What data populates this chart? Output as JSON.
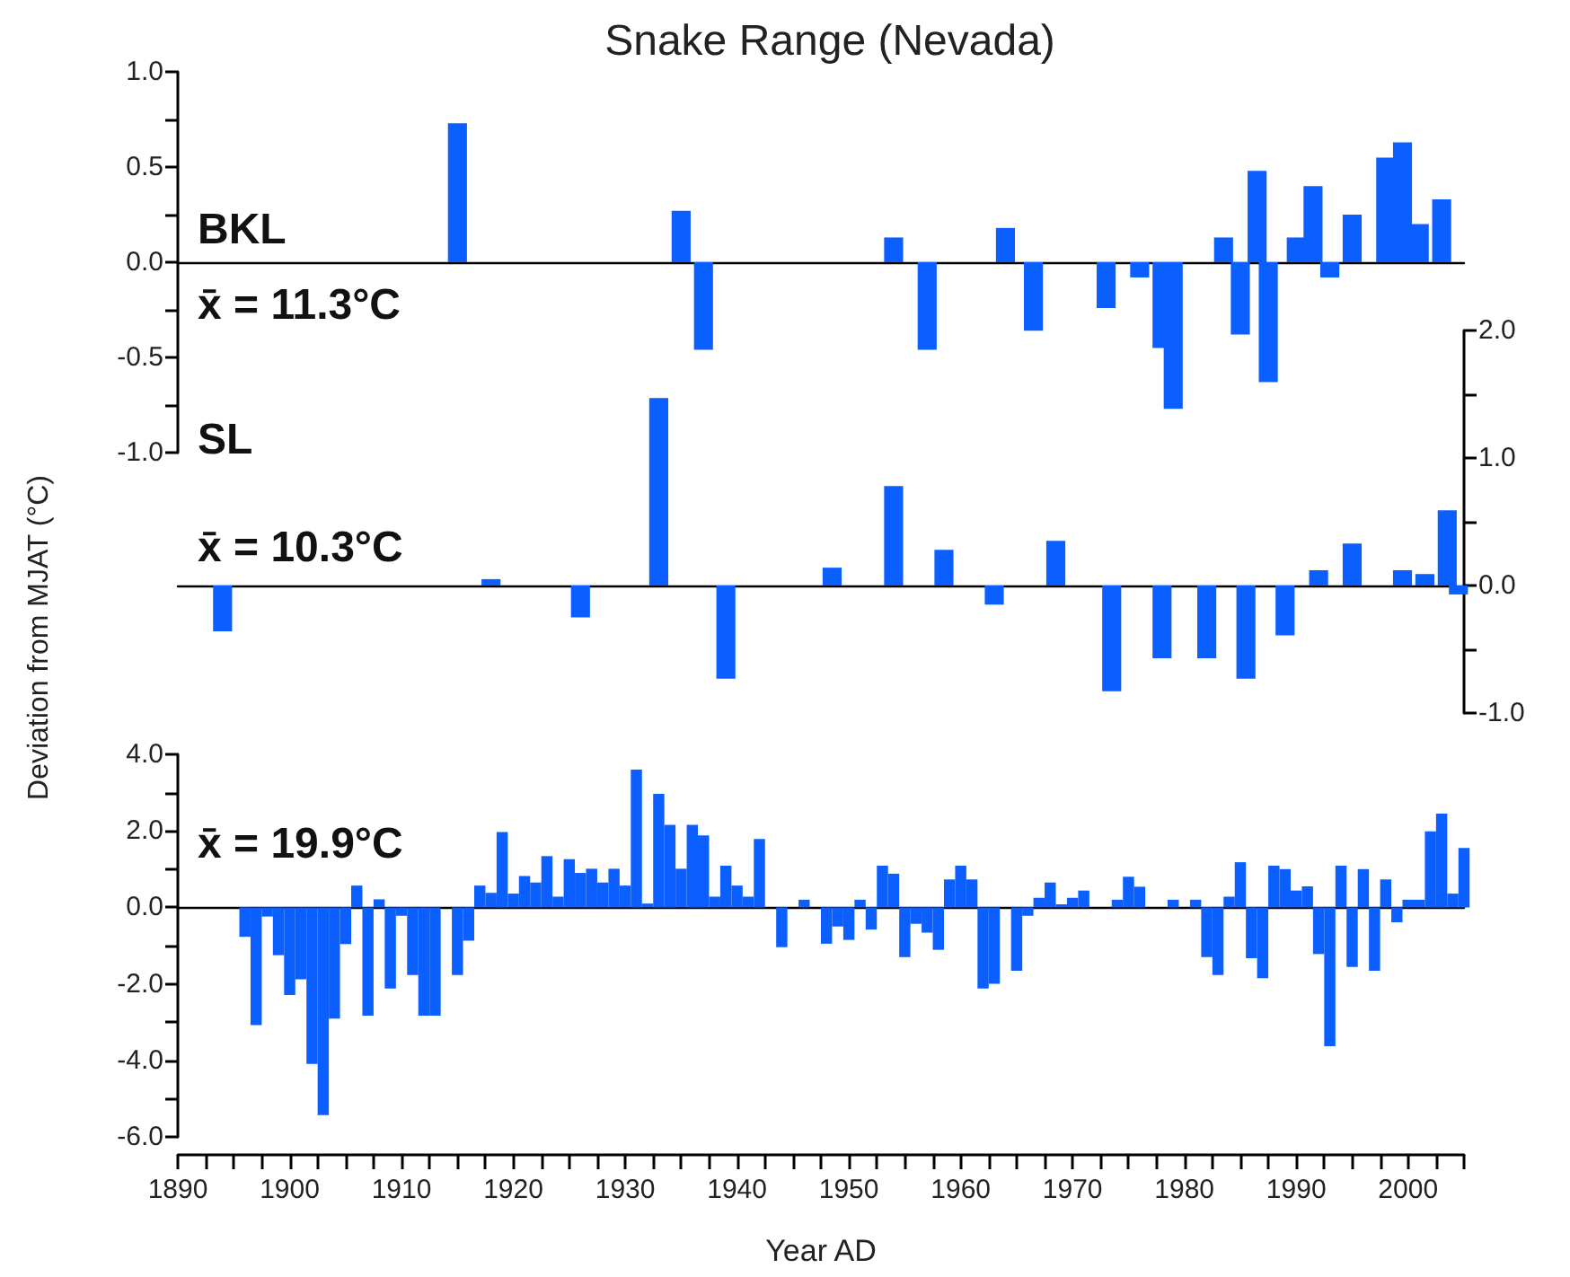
{
  "chart_data": [
    {
      "type": "bar",
      "title": "Snake Range (Nevada)",
      "annotations": [
        "BKL",
        "x̄ = 11.3°C"
      ],
      "color": "#0b5fff",
      "tick_labels": "y",
      "x": [
        1915,
        1935,
        1937,
        1954,
        1957,
        1964,
        1966.5,
        1973,
        1976,
        1978,
        1979,
        1983.5,
        1985,
        1986.5,
        1987.5,
        1990,
        1991.5,
        1993,
        1995,
        1998,
        1999.5,
        2001,
        2003
      ],
      "values": [
        0.73,
        0.27,
        -0.46,
        0.13,
        -0.46,
        0.18,
        -0.36,
        -0.24,
        -0.08,
        -0.45,
        -0.77,
        0.13,
        -0.38,
        0.48,
        -0.63,
        0.13,
        0.4,
        -0.08,
        0.25,
        0.55,
        0.63,
        0.2,
        0.33
      ],
      "xlim": [
        1890,
        2005
      ],
      "ylim": [
        -1,
        1
      ],
      "yticks": [
        {
          "value": -1,
          "label": "-1.0"
        },
        {
          "value": -0.75,
          "label": null
        },
        {
          "value": -0.5,
          "label": "-0.5"
        },
        {
          "value": -0.25,
          "label": null
        },
        {
          "value": 0,
          "label": "0.0"
        },
        {
          "value": 0.25,
          "label": null
        },
        {
          "value": 0.5,
          "label": "0.5"
        },
        {
          "value": 0.75,
          "label": null
        },
        {
          "value": 1,
          "label": "1.0"
        }
      ]
    },
    {
      "type": "bar",
      "annotations": [
        "SL",
        "x̄ = 10.3°C"
      ],
      "color": "#0b5fff",
      "tick_labels": "y",
      "x": [
        1894,
        1918,
        1926,
        1933,
        1939,
        1948.5,
        1954,
        1958.5,
        1963,
        1968.5,
        1973.5,
        1978,
        1982,
        1985.5,
        1989,
        1992,
        1995,
        1999.5,
        2001.5,
        2003.5,
        2004.5
      ],
      "values": [
        -0.36,
        0.05,
        -0.25,
        1.47,
        -0.73,
        0.14,
        0.78,
        0.28,
        -0.15,
        0.35,
        -0.83,
        -0.57,
        -0.57,
        -0.73,
        -0.39,
        0.12,
        0.33,
        0.12,
        0.09,
        0.59,
        -0.07
      ],
      "xlim": [
        1890,
        2005
      ],
      "ylim": [
        -1,
        2
      ],
      "yticks": [
        {
          "value": -1,
          "label": "-1.0"
        },
        {
          "value": -0.5,
          "label": null
        },
        {
          "value": 0,
          "label": "0.0"
        },
        {
          "value": 0.5,
          "label": null
        },
        {
          "value": 1,
          "label": "1.0"
        },
        {
          "value": 1.5,
          "label": null
        },
        {
          "value": 2,
          "label": "2.0"
        }
      ]
    },
    {
      "type": "bar",
      "annotations": [
        "x̄ = 19.9°C"
      ],
      "xlabel": "Year AD",
      "ylabel": "Deviation from MJAT (°C)",
      "color": "#0b5fff",
      "x": [
        1896,
        1897,
        1898,
        1899,
        1900,
        1901,
        1902,
        1903,
        1904,
        1905,
        1906,
        1907,
        1908,
        1909,
        1910,
        1911,
        1912,
        1913,
        1915,
        1916,
        1917,
        1918,
        1919,
        1920,
        1921,
        1922,
        1923,
        1924,
        1925,
        1926,
        1927,
        1928,
        1929,
        1930,
        1931,
        1932,
        1933,
        1934,
        1935,
        1936,
        1937,
        1938,
        1939,
        1940,
        1941,
        1942,
        1944,
        1946,
        1948,
        1949,
        1950,
        1951,
        1952,
        1953,
        1954,
        1955,
        1956,
        1957,
        1958,
        1959,
        1960,
        1961,
        1962,
        1963,
        1965,
        1966,
        1967,
        1968,
        1969,
        1970,
        1971,
        1974,
        1975,
        1976,
        1979,
        1981,
        1982,
        1983,
        1984,
        1985,
        1986,
        1987,
        1988,
        1989,
        1990,
        1991,
        1992,
        1993,
        1994,
        1995,
        1996,
        1997,
        1998,
        1999,
        2000,
        2001,
        2002,
        2003,
        2004,
        2005
      ],
      "values": [
        -0.77,
        -3.08,
        -0.24,
        -1.25,
        -2.29,
        -1.88,
        -4.09,
        -5.43,
        -2.91,
        -0.96,
        0.57,
        -2.83,
        0.21,
        -2.12,
        -0.22,
        -1.77,
        -2.83,
        -2.83,
        -1.77,
        -0.87,
        0.57,
        0.38,
        1.97,
        0.36,
        0.82,
        0.65,
        1.34,
        0.28,
        1.26,
        0.9,
        1.01,
        0.65,
        1.01,
        0.57,
        3.6,
        0.1,
        2.97,
        2.16,
        1.01,
        2.16,
        1.88,
        0.28,
        1.09,
        0.57,
        0.28,
        1.79,
        -1.04,
        0.2,
        -0.95,
        -0.5,
        -0.85,
        0.2,
        -0.58,
        1.09,
        0.88,
        -1.3,
        -0.43,
        -0.66,
        -1.11,
        0.73,
        1.09,
        0.73,
        -2.12,
        -2.0,
        -1.66,
        -0.22,
        0.25,
        0.65,
        0.08,
        0.25,
        0.44,
        0.2,
        0.8,
        0.54,
        0.2,
        0.2,
        -1.3,
        -1.77,
        0.28,
        1.18,
        -1.33,
        -1.85,
        1.09,
        1.0,
        0.44,
        0.55,
        -1.22,
        -3.63,
        1.09,
        -1.56,
        1.0,
        -1.66,
        0.73,
        -0.39,
        0.2,
        0.2,
        1.99,
        2.45,
        0.36,
        1.55
      ],
      "xlim": [
        1890,
        2005
      ],
      "ylim": [
        -6,
        4
      ],
      "xticks": [
        1890,
        {
          "value": 1892.5,
          "label": null
        },
        {
          "value": 1895,
          "label": null
        },
        {
          "value": 1897.5,
          "label": null
        },
        1900,
        {
          "value": 1902.5,
          "label": null
        },
        {
          "value": 1905,
          "label": null
        },
        {
          "value": 1907.5,
          "label": null
        },
        1910,
        {
          "value": 1912.5,
          "label": null
        },
        {
          "value": 1915,
          "label": null
        },
        {
          "value": 1917.5,
          "label": null
        },
        1920,
        {
          "value": 1922.5,
          "label": null
        },
        {
          "value": 1925,
          "label": null
        },
        {
          "value": 1927.5,
          "label": null
        },
        1930,
        {
          "value": 1932.5,
          "label": null
        },
        {
          "value": 1935,
          "label": null
        },
        {
          "value": 1937.5,
          "label": null
        },
        1940,
        {
          "value": 1942.5,
          "label": null
        },
        {
          "value": 1945,
          "label": null
        },
        {
          "value": 1947.5,
          "label": null
        },
        1950,
        {
          "value": 1952.5,
          "label": null
        },
        {
          "value": 1955,
          "label": null
        },
        {
          "value": 1957.5,
          "label": null
        },
        1960,
        {
          "value": 1962.5,
          "label": null
        },
        {
          "value": 1965,
          "label": null
        },
        {
          "value": 1967.5,
          "label": null
        },
        1970,
        {
          "value": 1972.5,
          "label": null
        },
        {
          "value": 1975,
          "label": null
        },
        {
          "value": 1977.5,
          "label": null
        },
        1980,
        {
          "value": 1982.5,
          "label": null
        },
        {
          "value": 1985,
          "label": null
        },
        {
          "value": 1987.5,
          "label": null
        },
        1990,
        {
          "value": 1992.5,
          "label": null
        },
        {
          "value": 1995,
          "label": null
        },
        {
          "value": 1997.5,
          "label": null
        },
        2000,
        {
          "value": 2002.5,
          "label": null
        },
        {
          "value": 2005,
          "label": null
        }
      ],
      "yticks": [
        {
          "value": -6,
          "label": "-6.0"
        },
        {
          "value": -5,
          "label": null
        },
        {
          "value": -4,
          "label": "-4.0"
        },
        {
          "value": -3,
          "label": null
        },
        {
          "value": -2,
          "label": "-2.0"
        },
        {
          "value": -1,
          "label": null
        },
        {
          "value": 0,
          "label": "0.0"
        },
        {
          "value": 1,
          "label": null
        },
        {
          "value": 2,
          "label": "2.0"
        },
        {
          "value": 3,
          "label": null
        },
        {
          "value": 4,
          "label": "4.0"
        }
      ]
    }
  ]
}
